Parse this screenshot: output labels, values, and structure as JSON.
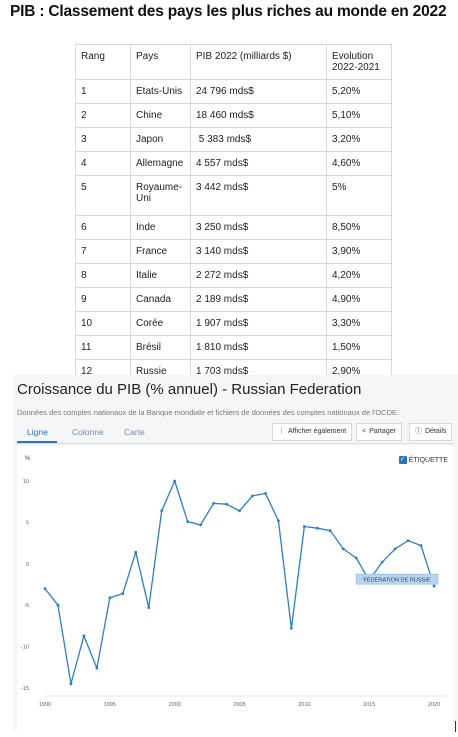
{
  "page": {
    "title": "PIB : Classement des pays les plus riches au monde en 2022"
  },
  "table": {
    "headers": [
      "Rang",
      "Pays",
      "PIB 2022 (milliards $)",
      "Evolution 2022-2021"
    ],
    "rows": [
      [
        "1",
        "Etats-Unis",
        "24 796 mds$",
        "5,20%"
      ],
      [
        "2",
        "Chine",
        "18 460 mds$",
        "5,10%"
      ],
      [
        "3",
        "Japon",
        " 5 383 mds$",
        "3,20%"
      ],
      [
        "4",
        "Allemagne",
        "4 557 mds$",
        "4,60%"
      ],
      [
        "5",
        "Royaume-Uni",
        "3 442 mds$",
        "5%"
      ],
      [
        "6",
        "Inde",
        "3 250 mds$",
        "8,50%"
      ],
      [
        "7",
        "France",
        "3 140 mds$",
        "3,90%"
      ],
      [
        "8",
        "Italie",
        "2 272 mds$",
        "4,20%"
      ],
      [
        "9",
        "Canada",
        "2 189 mds$",
        "4,90%"
      ],
      [
        "10",
        "Corée",
        "1 907 mds$",
        "3,30%"
      ],
      [
        "11",
        "Brésil",
        "1 810 mds$",
        "1,50%"
      ],
      [
        "12",
        "Russie",
        "1 703 mds$",
        "2,90%"
      ]
    ]
  },
  "widget": {
    "title": "Croissance du PIB (% annuel) - Russian Federation",
    "subtitle": "Données des comptes nationaux de la Banque mondiale et fichiers de données des comptes nationaux de l'OCDE.",
    "tabs": [
      "Ligne",
      "Colonne",
      "Carte"
    ],
    "active_tab": "Ligne",
    "buttons": {
      "also_show": "Afficher également",
      "share": "Partager",
      "details": "Détails"
    },
    "checkbox_label": "ÉTIQUETTE",
    "checkbox_checked": true
  },
  "chart_data": {
    "type": "line",
    "title": "Croissance du PIB (% annuel) - Russian Federation",
    "ylabel": "%",
    "xlabel": "",
    "ylim": [
      -15,
      10
    ],
    "xlim": [
      1990,
      2021
    ],
    "yticks": [
      10,
      5,
      0,
      -5,
      -10,
      -15
    ],
    "xticks": [
      1990,
      1995,
      2000,
      2005,
      2010,
      2015,
      2020
    ],
    "x": [
      1990,
      1991,
      1992,
      1993,
      1994,
      1995,
      1996,
      1997,
      1998,
      1999,
      2000,
      2001,
      2002,
      2003,
      2004,
      2005,
      2006,
      2007,
      2008,
      2009,
      2010,
      2011,
      2012,
      2013,
      2014,
      2015,
      2016,
      2017,
      2018,
      2019,
      2020
    ],
    "series": [
      {
        "name": "FÉDÉRATION DE RUSSIE",
        "color": "#2e7fc0",
        "values": [
          -3.0,
          -5.0,
          -14.5,
          -8.7,
          -12.6,
          -4.1,
          -3.6,
          1.4,
          -5.3,
          6.4,
          10.0,
          5.1,
          4.7,
          7.3,
          7.2,
          6.4,
          8.2,
          8.5,
          5.2,
          -7.8,
          4.5,
          4.3,
          4.0,
          1.8,
          0.7,
          -2.0,
          0.2,
          1.8,
          2.8,
          2.2,
          -2.7
        ]
      }
    ],
    "annotation": "FÉDÉRATION DE RUSSIE",
    "grid": false,
    "legend": "none"
  }
}
